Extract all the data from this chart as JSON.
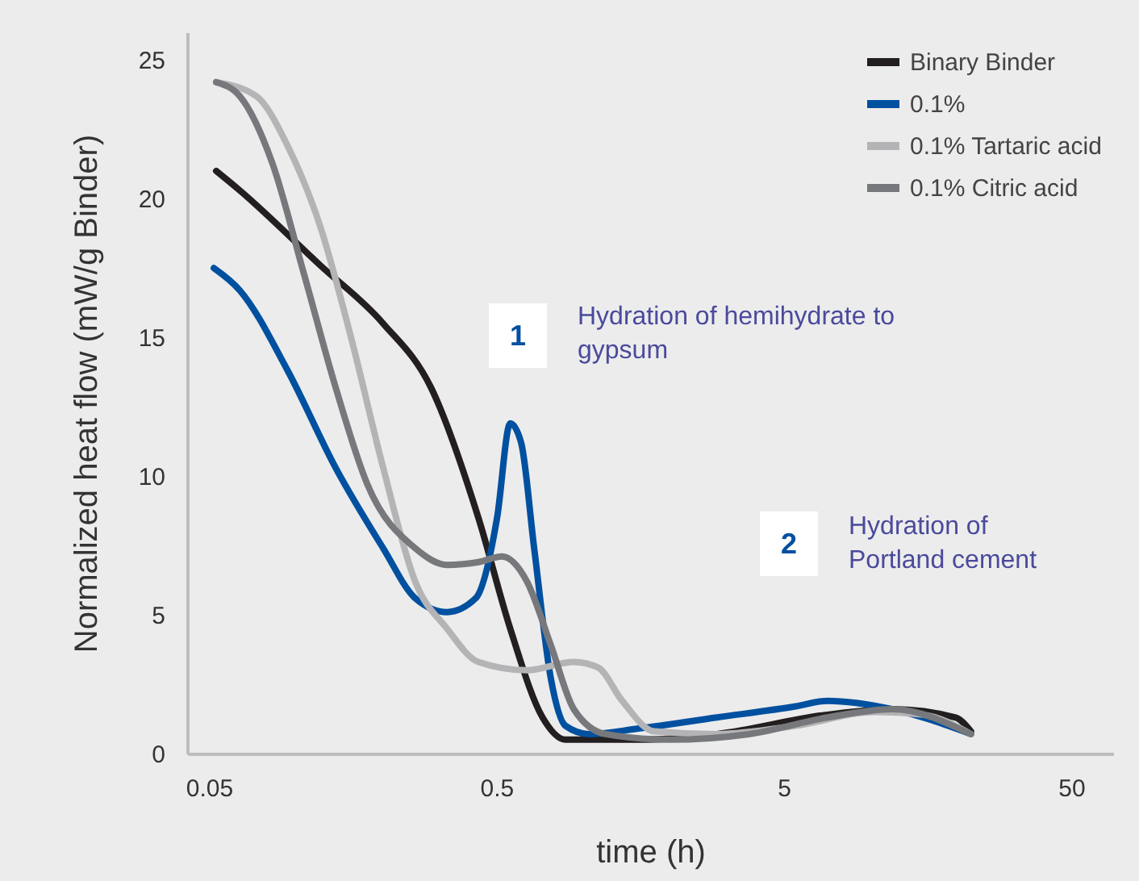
{
  "chart_data": {
    "type": "line",
    "xlabel": "time (h)",
    "ylabel": "Normalized heat flow (mW/g Binder)",
    "log": "x",
    "xlim": [
      0.042,
      70
    ],
    "xticks": [
      0.05,
      0.5,
      5,
      50
    ],
    "ylim": [
      0,
      26
    ],
    "yticks": [
      0,
      5,
      10,
      15,
      20,
      25
    ],
    "grid": false,
    "legend": "top right",
    "marker": "none",
    "line_style": "solid",
    "annotations": [
      "1",
      "Hydration of hemihydrate to\ngypsum",
      "2",
      "Hydration of\nPortland cement"
    ],
    "series": [
      {
        "name": "Binary Binder",
        "color": "#231f20",
        "x": [
          0.053,
          0.064,
          0.122,
          0.202,
          0.296,
          0.433,
          0.559,
          0.724,
          0.87,
          1.56,
          2.93,
          7.1,
          11.9,
          19.8,
          22.4
        ],
        "values": [
          21.0,
          20.3,
          17.6,
          15.5,
          13.2,
          8.5,
          4.5,
          1.3,
          0.5,
          0.5,
          0.7,
          1.4,
          1.6,
          1.3,
          0.8
        ]
      },
      {
        "name": "0.1%",
        "color": "#0050a0",
        "x": [
          0.052,
          0.064,
          0.094,
          0.138,
          0.202,
          0.261,
          0.337,
          0.424,
          0.503,
          0.559,
          0.61,
          0.677,
          0.774,
          0.87,
          1.05,
          1.56,
          2.93,
          5.5,
          7.1,
          11.9,
          22.4
        ],
        "values": [
          17.5,
          16.7,
          13.8,
          10.3,
          7.4,
          5.6,
          5.1,
          5.6,
          8.5,
          11.9,
          11.2,
          7.4,
          2.7,
          1.0,
          0.7,
          0.9,
          1.3,
          1.7,
          1.9,
          1.6,
          0.7
        ]
      },
      {
        "name": "0.1% Tartaric acid",
        "color": "#b4b4b6",
        "x": [
          0.053,
          0.073,
          0.094,
          0.122,
          0.157,
          0.202,
          0.261,
          0.337,
          0.433,
          0.639,
          0.93,
          1.13,
          1.37,
          1.77,
          2.93,
          5.5,
          10.4,
          15.3,
          22.4
        ],
        "values": [
          24.2,
          23.7,
          21.9,
          19.0,
          14.9,
          10.3,
          6.2,
          4.5,
          3.3,
          3.0,
          3.3,
          3.1,
          1.9,
          0.8,
          0.7,
          1.0,
          1.5,
          1.4,
          0.7
        ]
      },
      {
        "name": "0.1% Citric acid",
        "color": "#77787b",
        "x": [
          0.053,
          0.064,
          0.083,
          0.107,
          0.138,
          0.178,
          0.261,
          0.337,
          0.433,
          0.523,
          0.639,
          0.774,
          0.93,
          1.2,
          2.0,
          3.78,
          7.1,
          11.9,
          22.4
        ],
        "values": [
          24.2,
          23.7,
          21.3,
          17.3,
          13.2,
          9.7,
          7.4,
          6.8,
          6.9,
          7.1,
          6.2,
          3.9,
          1.6,
          0.7,
          0.5,
          0.7,
          1.3,
          1.6,
          0.7
        ]
      }
    ]
  }
}
